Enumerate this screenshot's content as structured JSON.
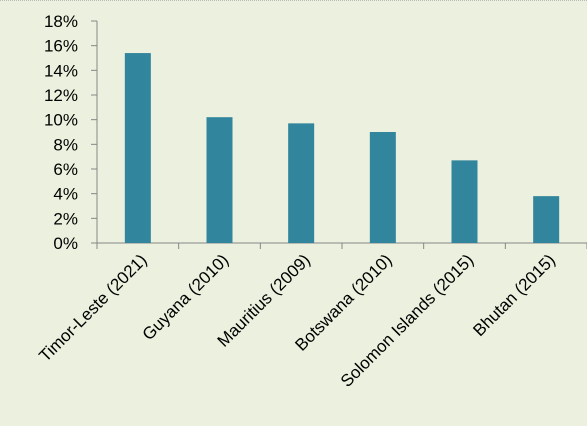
{
  "colors": {
    "background": "#ebf1de",
    "bar": "#31859c",
    "axis": "#868686",
    "text": "#000000"
  },
  "chart_data": {
    "type": "bar",
    "title": "",
    "xlabel": "",
    "ylabel": "",
    "categories": [
      "Timor-Leste (2021)",
      "Guyana (2010)",
      "Mauritius (2009)",
      "Botswana (2010)",
      "Solomon Islands (2015)",
      "Bhutan (2015)"
    ],
    "values": [
      15.4,
      10.2,
      9.7,
      9.0,
      6.7,
      3.8
    ],
    "value_format": "percent",
    "ylim": [
      0,
      18
    ],
    "yticks": [
      0,
      2,
      4,
      6,
      8,
      10,
      12,
      14,
      16,
      18
    ],
    "ytick_labels": [
      "0%",
      "2%",
      "4%",
      "6%",
      "8%",
      "10%",
      "12%",
      "14%",
      "16%",
      "18%"
    ],
    "grid": false,
    "legend": "none"
  }
}
